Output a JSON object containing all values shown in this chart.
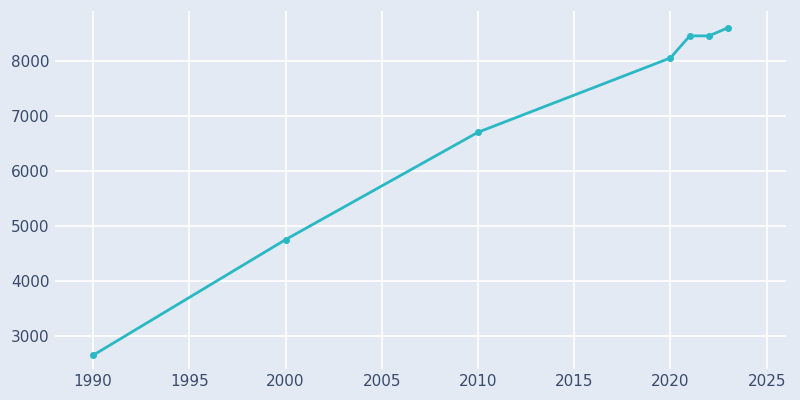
{
  "years": [
    1990,
    2000,
    2010,
    2020,
    2021,
    2022,
    2023
  ],
  "population": [
    2650,
    4750,
    6700,
    8050,
    8450,
    8450,
    8600
  ],
  "line_color": "#29B8C4",
  "bg_color": "#E3EAF3",
  "fig_bg_color": "#E3EAF3",
  "xlim": [
    1988,
    2026
  ],
  "ylim": [
    2400,
    8900
  ],
  "xticks": [
    1990,
    1995,
    2000,
    2005,
    2010,
    2015,
    2020,
    2025
  ],
  "yticks": [
    3000,
    4000,
    5000,
    6000,
    7000,
    8000
  ],
  "linewidth": 2.0,
  "marker": "o",
  "markersize": 4
}
